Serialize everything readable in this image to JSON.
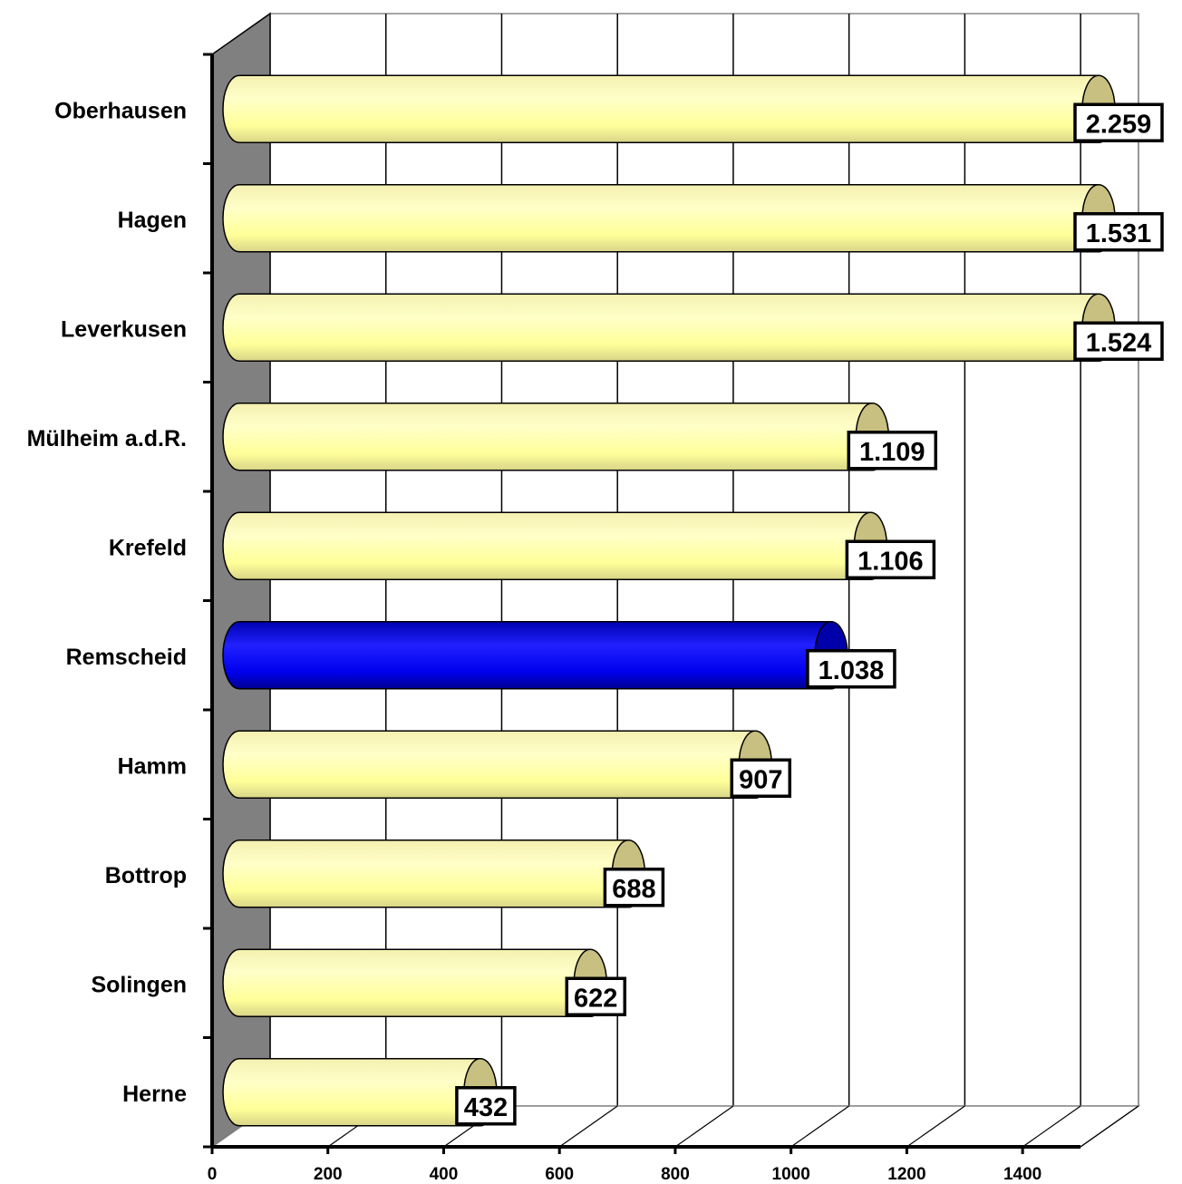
{
  "chart_data": {
    "type": "bar",
    "orientation": "horizontal",
    "style": "3d-cylinder",
    "title": "",
    "xlabel": "",
    "ylabel": "",
    "categories": [
      "Oberhausen",
      "Hagen",
      "Leverkusen",
      "Mülheim a.d.R.",
      "Krefeld",
      "Remscheid",
      "Hamm",
      "Bottrop",
      "Solingen",
      "Herne"
    ],
    "values": [
      2259,
      1531,
      1524,
      1109,
      1106,
      1038,
      907,
      688,
      622,
      432
    ],
    "value_labels": [
      "2.259",
      "1.531",
      "1.524",
      "1.109",
      "1.106",
      "1.038",
      "907",
      "688",
      "622",
      "432"
    ],
    "highlight_index": 5,
    "xlim": [
      0,
      1500
    ],
    "clipped_max": 1500,
    "x_ticks": [
      0,
      200,
      400,
      600,
      800,
      1000,
      1200,
      1400
    ],
    "x_tick_labels": [
      "0",
      "200",
      "400",
      "600",
      "800",
      "1000",
      "1200",
      "1400"
    ],
    "grid": true,
    "legend": "none",
    "colors": {
      "bar": "#ffff99",
      "bar_cap": "#c8c080",
      "highlight": "#0000ff",
      "highlight_cap": "#0000aa",
      "side_wall": "#808080",
      "gridline": "#000000"
    }
  }
}
